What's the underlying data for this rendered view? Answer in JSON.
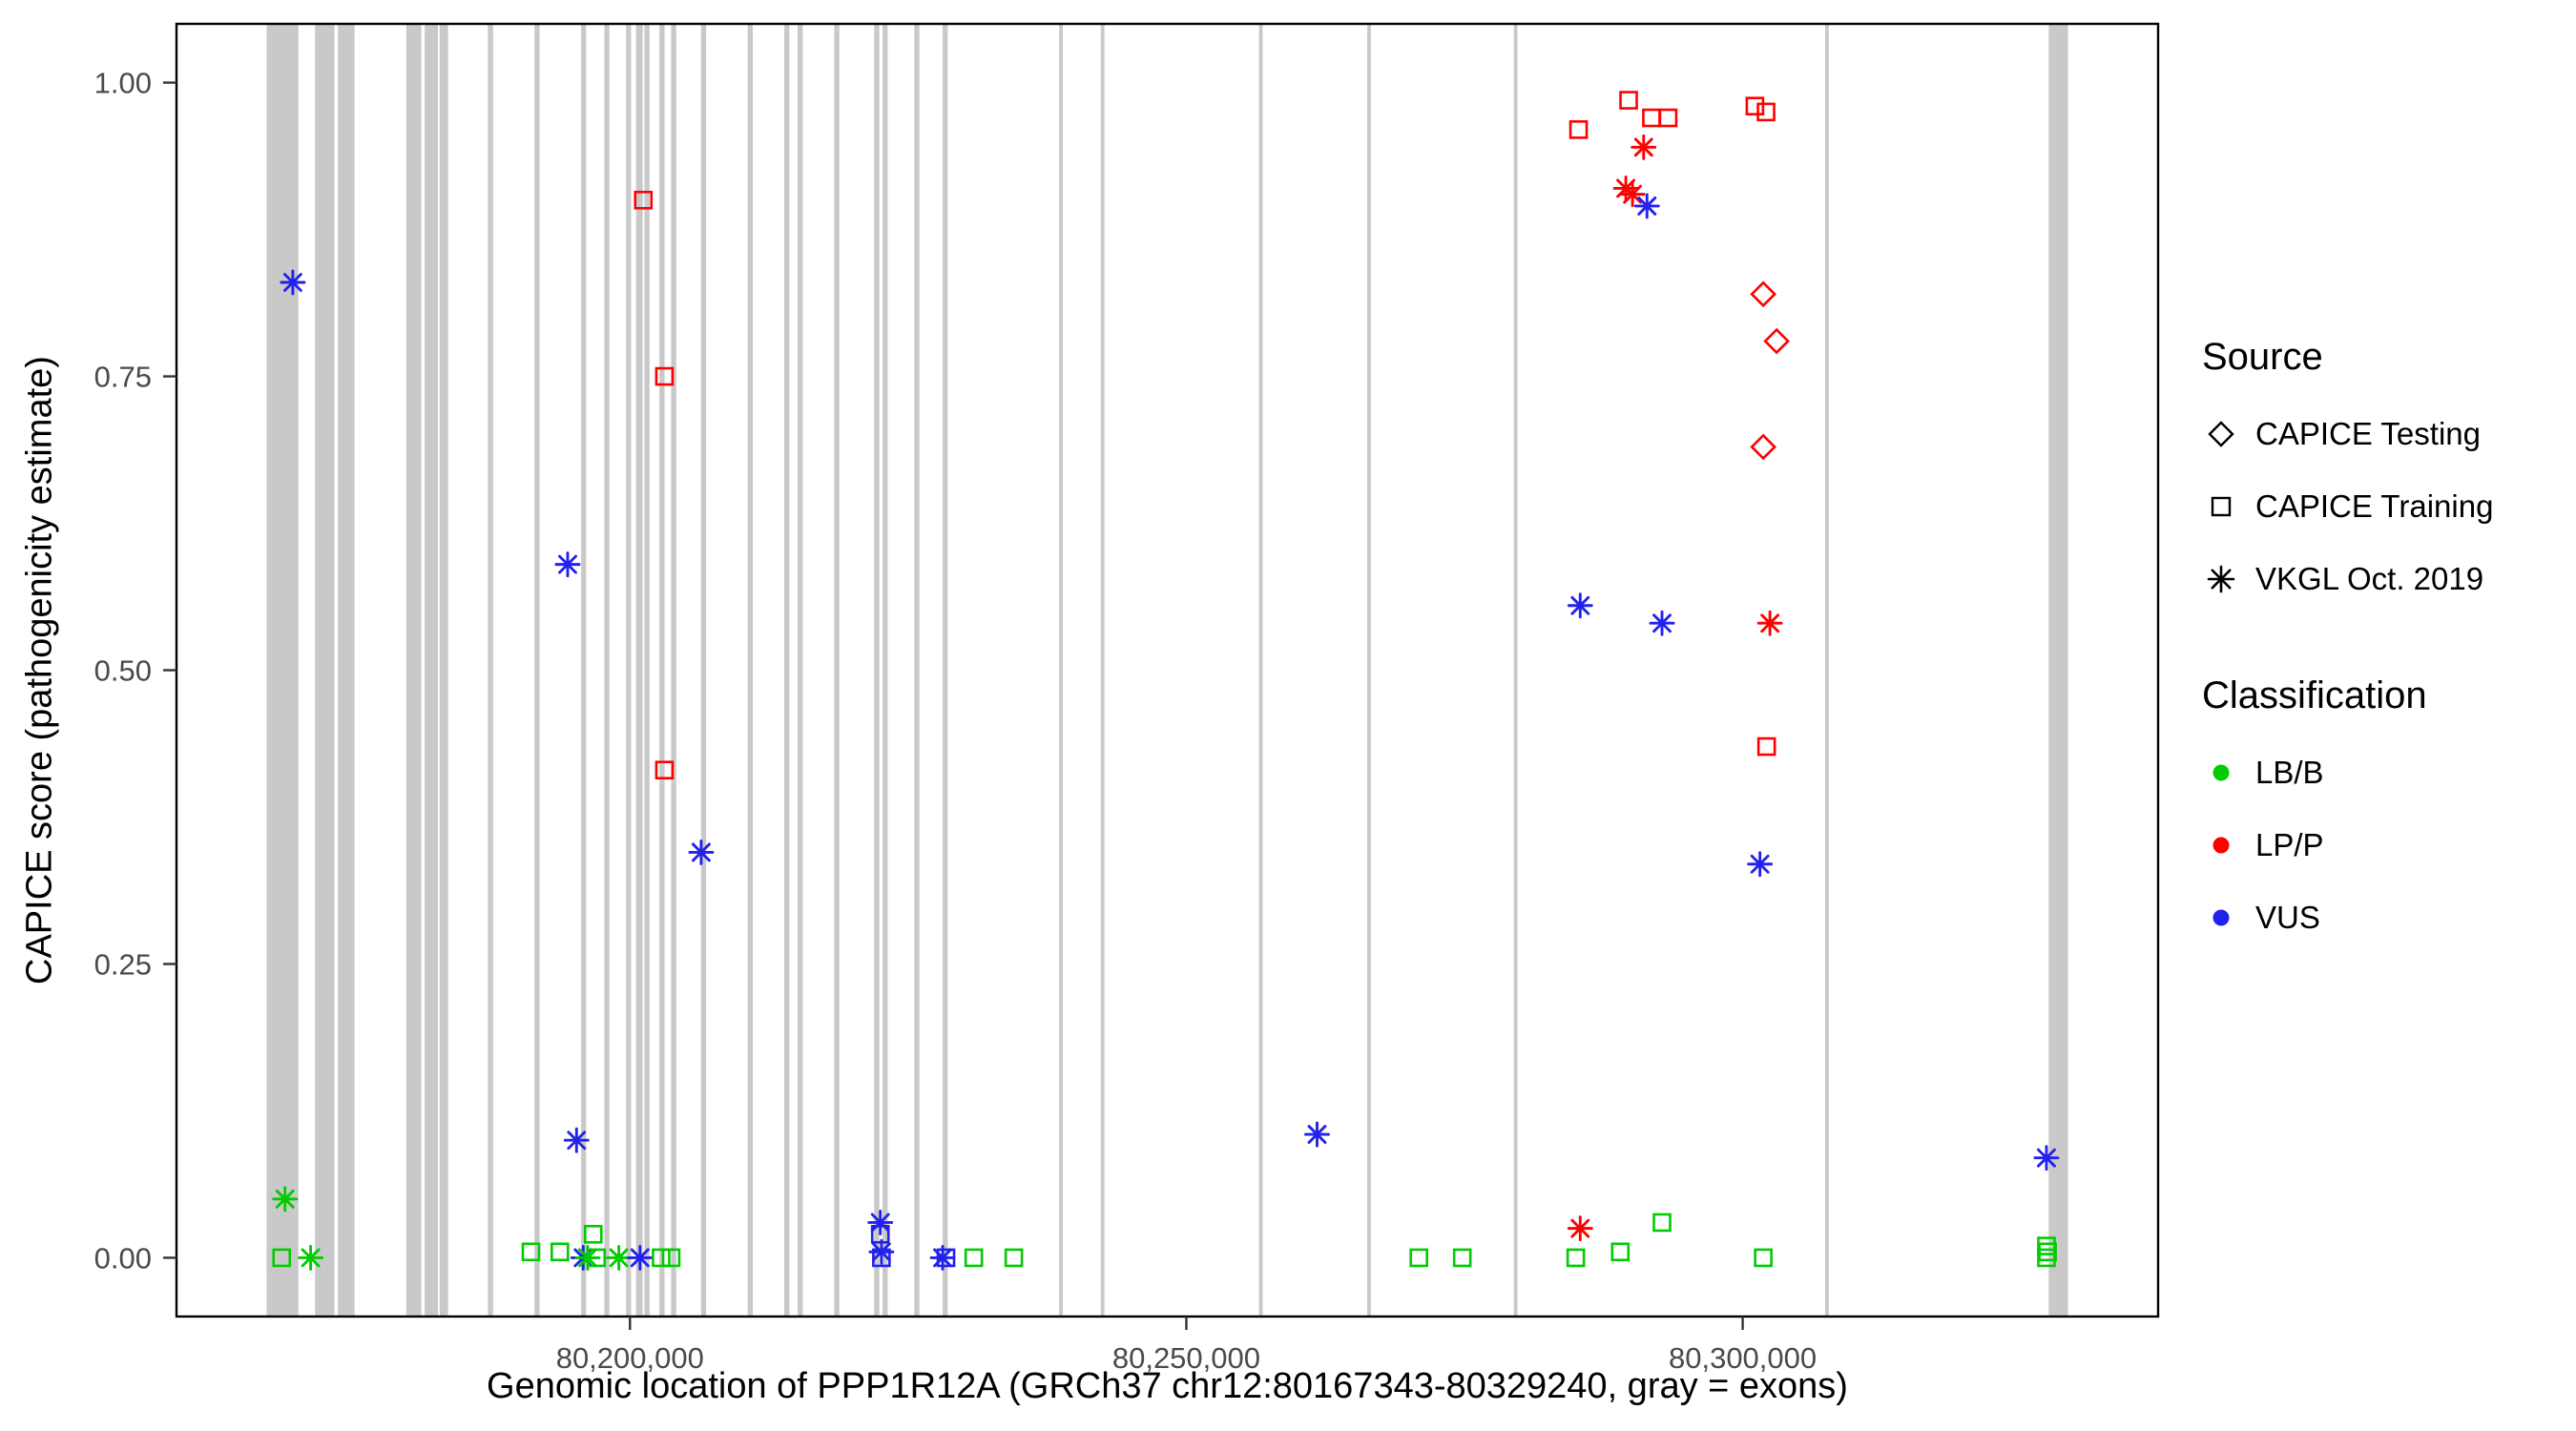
{
  "legend": {
    "source": {
      "title": "Source",
      "items": [
        {
          "label": "CAPICE Testing",
          "shape": "diamond"
        },
        {
          "label": "CAPICE Training",
          "shape": "square"
        },
        {
          "label": "VKGL Oct. 2019",
          "shape": "asterisk"
        }
      ]
    },
    "classification": {
      "title": "Classification",
      "items": [
        {
          "label": "LB/B",
          "color": "#00CC00"
        },
        {
          "label": "LP/P",
          "color": "#FF0000"
        },
        {
          "label": "VUS",
          "color": "#2222EE"
        }
      ]
    }
  },
  "chart_data": {
    "type": "scatter",
    "title": "",
    "xlabel": "Genomic location of PPP1R12A (GRCh37 chr12:80167343-80329240, gray = exons)",
    "ylabel": "CAPICE score (pathogenicity estimate)",
    "gene_region": {
      "name": "PPP1R12A",
      "assembly": "GRCh37",
      "chromosome": "chr12",
      "start": 80167343,
      "end": 80329240
    },
    "x_axis": {
      "min": 80159248,
      "max": 80337335,
      "ticks": [
        {
          "value": 80200000,
          "label": "80,200,000"
        },
        {
          "value": 80250000,
          "label": "80,250,000"
        },
        {
          "value": 80300000,
          "label": "80,300,000"
        }
      ]
    },
    "y_axis": {
      "min": -0.05,
      "max": 1.05,
      "ticks": [
        {
          "value": 0.0,
          "label": "0.00"
        },
        {
          "value": 0.25,
          "label": "0.25"
        },
        {
          "value": 0.5,
          "label": "0.50"
        },
        {
          "value": 0.75,
          "label": "0.75"
        },
        {
          "value": 1.0,
          "label": "1.00"
        }
      ]
    },
    "grid": false,
    "legend_position": "right",
    "exon_color": "#C9C9C9",
    "classification_colors": {
      "LB/B": "#00CC00",
      "LP/P": "#FF0000",
      "VUS": "#2222EE"
    },
    "source_shapes": {
      "CAPICE Testing": "diamond",
      "CAPICE Training": "square",
      "VKGL Oct. 2019": "asterisk"
    },
    "exons": [
      [
        80167343,
        80170200
      ],
      [
        80171700,
        80173450
      ],
      [
        80173750,
        80175250
      ],
      [
        80179900,
        80181250
      ],
      [
        80181550,
        80182750
      ],
      [
        80182900,
        80183650
      ],
      [
        80187230,
        80187700
      ],
      [
        80191420,
        80191880
      ],
      [
        80195610,
        80196060
      ],
      [
        80197700,
        80198150
      ],
      [
        80199650,
        80200100
      ],
      [
        80200550,
        80201150
      ],
      [
        80201300,
        80201760
      ],
      [
        80202650,
        80203110
      ],
      [
        80203700,
        80204160
      ],
      [
        80206390,
        80206850
      ],
      [
        80210580,
        80211040
      ],
      [
        80213870,
        80214330
      ],
      [
        80215070,
        80215530
      ],
      [
        80218360,
        80218820
      ],
      [
        80221950,
        80222410
      ],
      [
        80222700,
        80223160
      ],
      [
        80225550,
        80226010
      ],
      [
        80228100,
        80228560
      ],
      [
        80238570,
        80238900
      ],
      [
        80242310,
        80242640
      ],
      [
        80256530,
        80256860
      ],
      [
        80266260,
        80266590
      ],
      [
        80279430,
        80279760
      ],
      [
        80307410,
        80307740
      ],
      [
        80327500,
        80329240
      ]
    ],
    "points": [
      {
        "pos": 80168700,
        "score": 0.0,
        "src": "CAPICE Training",
        "cls": "LB/B"
      },
      {
        "pos": 80169000,
        "score": 0.05,
        "src": "VKGL Oct. 2019",
        "cls": "LB/B"
      },
      {
        "pos": 80169700,
        "score": 0.83,
        "src": "VKGL Oct. 2019",
        "cls": "VUS"
      },
      {
        "pos": 80171300,
        "score": 0.0,
        "src": "VKGL Oct. 2019",
        "cls": "LB/B"
      },
      {
        "pos": 80191100,
        "score": 0.005,
        "src": "CAPICE Training",
        "cls": "LB/B"
      },
      {
        "pos": 80193700,
        "score": 0.005,
        "src": "CAPICE Training",
        "cls": "LB/B"
      },
      {
        "pos": 80194400,
        "score": 0.59,
        "src": "VKGL Oct. 2019",
        "cls": "VUS"
      },
      {
        "pos": 80195200,
        "score": 0.1,
        "src": "VKGL Oct. 2019",
        "cls": "VUS"
      },
      {
        "pos": 80195800,
        "score": 0.0,
        "src": "VKGL Oct. 2019",
        "cls": "VUS"
      },
      {
        "pos": 80196200,
        "score": 0.0,
        "src": "VKGL Oct. 2019",
        "cls": "LB/B"
      },
      {
        "pos": 80196700,
        "score": 0.02,
        "src": "CAPICE Training",
        "cls": "LB/B"
      },
      {
        "pos": 80197000,
        "score": 0.0,
        "src": "CAPICE Training",
        "cls": "LB/B"
      },
      {
        "pos": 80199000,
        "score": 0.0,
        "src": "VKGL Oct. 2019",
        "cls": "LB/B"
      },
      {
        "pos": 80200900,
        "score": 0.0,
        "src": "VKGL Oct. 2019",
        "cls": "VUS"
      },
      {
        "pos": 80201200,
        "score": 0.9,
        "src": "CAPICE Training",
        "cls": "LP/P"
      },
      {
        "pos": 80202800,
        "score": 0.0,
        "src": "CAPICE Training",
        "cls": "LB/B"
      },
      {
        "pos": 80203100,
        "score": 0.75,
        "src": "CAPICE Training",
        "cls": "LP/P"
      },
      {
        "pos": 80203100,
        "score": 0.415,
        "src": "CAPICE Training",
        "cls": "LP/P"
      },
      {
        "pos": 80203700,
        "score": 0.0,
        "src": "CAPICE Training",
        "cls": "LB/B"
      },
      {
        "pos": 80206400,
        "score": 0.345,
        "src": "VKGL Oct. 2019",
        "cls": "VUS"
      },
      {
        "pos": 80222500,
        "score": 0.03,
        "src": "VKGL Oct. 2019",
        "cls": "VUS"
      },
      {
        "pos": 80222500,
        "score": 0.02,
        "src": "CAPICE Training",
        "cls": "VUS"
      },
      {
        "pos": 80222600,
        "score": 0.005,
        "src": "VKGL Oct. 2019",
        "cls": "VUS"
      },
      {
        "pos": 80222600,
        "score": 0.0,
        "src": "CAPICE Training",
        "cls": "VUS"
      },
      {
        "pos": 80228100,
        "score": 0.0,
        "src": "VKGL Oct. 2019",
        "cls": "VUS"
      },
      {
        "pos": 80228400,
        "score": 0.0,
        "src": "CAPICE Training",
        "cls": "VUS"
      },
      {
        "pos": 80230900,
        "score": 0.0,
        "src": "CAPICE Training",
        "cls": "LB/B"
      },
      {
        "pos": 80234500,
        "score": 0.0,
        "src": "CAPICE Training",
        "cls": "LB/B"
      },
      {
        "pos": 80261750,
        "score": 0.105,
        "src": "VKGL Oct. 2019",
        "cls": "VUS"
      },
      {
        "pos": 80270900,
        "score": 0.0,
        "src": "CAPICE Training",
        "cls": "LB/B"
      },
      {
        "pos": 80274800,
        "score": 0.0,
        "src": "CAPICE Training",
        "cls": "LB/B"
      },
      {
        "pos": 80285000,
        "score": 0.0,
        "src": "CAPICE Training",
        "cls": "LB/B"
      },
      {
        "pos": 80285250,
        "score": 0.96,
        "src": "CAPICE Training",
        "cls": "LP/P"
      },
      {
        "pos": 80285400,
        "score": 0.555,
        "src": "VKGL Oct. 2019",
        "cls": "VUS"
      },
      {
        "pos": 80285400,
        "score": 0.025,
        "src": "VKGL Oct. 2019",
        "cls": "LP/P"
      },
      {
        "pos": 80289000,
        "score": 0.005,
        "src": "CAPICE Training",
        "cls": "LB/B"
      },
      {
        "pos": 80289750,
        "score": 0.985,
        "src": "CAPICE Training",
        "cls": "LP/P"
      },
      {
        "pos": 80289500,
        "score": 0.91,
        "src": "VKGL Oct. 2019",
        "cls": "LP/P"
      },
      {
        "pos": 80290100,
        "score": 0.905,
        "src": "VKGL Oct. 2019",
        "cls": "LP/P"
      },
      {
        "pos": 80291100,
        "score": 0.945,
        "src": "VKGL Oct. 2019",
        "cls": "LP/P"
      },
      {
        "pos": 80291800,
        "score": 0.97,
        "src": "CAPICE Training",
        "cls": "LP/P"
      },
      {
        "pos": 80293300,
        "score": 0.97,
        "src": "CAPICE Training",
        "cls": "LP/P"
      },
      {
        "pos": 80291400,
        "score": 0.895,
        "src": "VKGL Oct. 2019",
        "cls": "VUS"
      },
      {
        "pos": 80292750,
        "score": 0.54,
        "src": "VKGL Oct. 2019",
        "cls": "VUS"
      },
      {
        "pos": 80292750,
        "score": 0.03,
        "src": "CAPICE Training",
        "cls": "LB/B"
      },
      {
        "pos": 80301100,
        "score": 0.98,
        "src": "CAPICE Training",
        "cls": "LP/P"
      },
      {
        "pos": 80302100,
        "score": 0.975,
        "src": "CAPICE Training",
        "cls": "LP/P"
      },
      {
        "pos": 80301850,
        "score": 0.82,
        "src": "CAPICE Testing",
        "cls": "LP/P"
      },
      {
        "pos": 80303050,
        "score": 0.78,
        "src": "CAPICE Testing",
        "cls": "LP/P"
      },
      {
        "pos": 80301850,
        "score": 0.69,
        "src": "CAPICE Testing",
        "cls": "LP/P"
      },
      {
        "pos": 80302450,
        "score": 0.54,
        "src": "VKGL Oct. 2019",
        "cls": "LP/P"
      },
      {
        "pos": 80302150,
        "score": 0.435,
        "src": "CAPICE Training",
        "cls": "LP/P"
      },
      {
        "pos": 80301550,
        "score": 0.335,
        "src": "VKGL Oct. 2019",
        "cls": "VUS"
      },
      {
        "pos": 80301850,
        "score": 0.0,
        "src": "CAPICE Training",
        "cls": "LB/B"
      },
      {
        "pos": 80327300,
        "score": 0.085,
        "src": "VKGL Oct. 2019",
        "cls": "VUS"
      },
      {
        "pos": 80327300,
        "score": 0.01,
        "src": "CAPICE Training",
        "cls": "LB/B"
      },
      {
        "pos": 80327400,
        "score": 0.005,
        "src": "CAPICE Training",
        "cls": "LB/B"
      },
      {
        "pos": 80327300,
        "score": 0.0,
        "src": "CAPICE Training",
        "cls": "LB/B"
      }
    ]
  }
}
